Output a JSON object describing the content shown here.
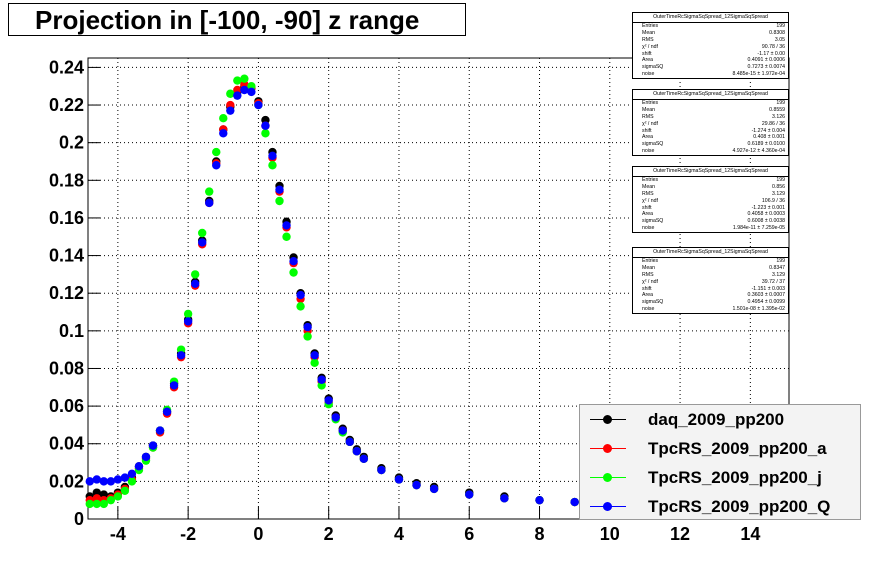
{
  "title": "Projection in [-100, -90] z range",
  "chart_data": {
    "type": "scatter",
    "xlim": [
      -4.85,
      15.1
    ],
    "ylim": [
      0,
      0.245
    ],
    "x_ticks": [
      -4,
      -2,
      0,
      2,
      4,
      6,
      8,
      10,
      12,
      14
    ],
    "x_tick_labels": [
      "-4",
      "-2",
      "0",
      "2",
      "4",
      "6",
      "8",
      "10",
      "12",
      "14"
    ],
    "y_ticks": [
      0,
      0.02,
      0.04,
      0.06,
      0.08,
      0.1,
      0.12,
      0.14,
      0.16,
      0.18,
      0.2,
      0.22,
      0.24
    ],
    "y_tick_labels": [
      "0",
      "0.02",
      "0.04",
      "0.06",
      "0.08",
      "0.1",
      "0.12",
      "0.14",
      "0.16",
      "0.18",
      "0.2",
      "0.22",
      "0.24"
    ],
    "grid": true,
    "series": [
      {
        "name": "daq_2009_pp200",
        "color": "#000000",
        "x": [
          -4.8,
          -4.6,
          -4.4,
          -4.2,
          -4.0,
          -3.8,
          -3.6,
          -3.4,
          -3.2,
          -3.0,
          -2.8,
          -2.6,
          -2.4,
          -2.2,
          -2.0,
          -1.8,
          -1.6,
          -1.4,
          -1.2,
          -1.0,
          -0.8,
          -0.6,
          -0.4,
          -0.2,
          0.0,
          0.2,
          0.4,
          0.6,
          0.8,
          1.0,
          1.2,
          1.4,
          1.6,
          1.8,
          2.0,
          2.2,
          2.4,
          2.6,
          2.8,
          3.0,
          3.5,
          4.0,
          4.5,
          5.0,
          6.0,
          7.0,
          8.0,
          9.0
        ],
        "y": [
          0.012,
          0.014,
          0.013,
          0.012,
          0.014,
          0.017,
          0.022,
          0.028,
          0.033,
          0.039,
          0.047,
          0.057,
          0.072,
          0.088,
          0.106,
          0.126,
          0.148,
          0.169,
          0.19,
          0.207,
          0.219,
          0.227,
          0.23,
          0.229,
          0.222,
          0.212,
          0.195,
          0.177,
          0.158,
          0.139,
          0.12,
          0.103,
          0.088,
          0.075,
          0.064,
          0.055,
          0.048,
          0.042,
          0.037,
          0.033,
          0.027,
          0.022,
          0.019,
          0.017,
          0.014,
          0.012,
          0.01,
          0.009
        ]
      },
      {
        "name": "TpcRS_2009_pp200_a",
        "color": "#ff0000",
        "x": [
          -4.8,
          -4.6,
          -4.4,
          -4.2,
          -4.0,
          -3.8,
          -3.6,
          -3.4,
          -3.2,
          -3.0,
          -2.8,
          -2.6,
          -2.4,
          -2.2,
          -2.0,
          -1.8,
          -1.6,
          -1.4,
          -1.2,
          -1.0,
          -0.8,
          -0.6,
          -0.4,
          -0.2,
          0.0,
          0.2,
          0.4,
          0.6,
          0.8,
          1.0,
          1.2,
          1.4,
          1.6,
          1.8,
          2.0,
          2.2,
          2.4,
          2.6,
          2.8,
          3.0,
          3.5,
          4.0,
          4.5,
          5.0,
          6.0,
          7.0,
          8.0,
          9.0
        ],
        "y": [
          0.01,
          0.011,
          0.01,
          0.011,
          0.013,
          0.016,
          0.021,
          0.027,
          0.032,
          0.038,
          0.046,
          0.056,
          0.07,
          0.086,
          0.104,
          0.124,
          0.146,
          0.168,
          0.189,
          0.207,
          0.22,
          0.228,
          0.231,
          0.229,
          0.221,
          0.209,
          0.192,
          0.174,
          0.155,
          0.136,
          0.117,
          0.1,
          0.086,
          0.073,
          0.062,
          0.054,
          0.047,
          0.041,
          0.036,
          0.032,
          0.026,
          0.021,
          0.018,
          0.016,
          0.013,
          0.011,
          0.01,
          0.009
        ]
      },
      {
        "name": "TpcRS_2009_pp200_j",
        "color": "#00ff00",
        "x": [
          -4.8,
          -4.6,
          -4.4,
          -4.2,
          -4.0,
          -3.8,
          -3.6,
          -3.4,
          -3.2,
          -3.0,
          -2.8,
          -2.6,
          -2.4,
          -2.2,
          -2.0,
          -1.8,
          -1.6,
          -1.4,
          -1.2,
          -1.0,
          -0.8,
          -0.6,
          -0.4,
          -0.2,
          0.0,
          0.2,
          0.4,
          0.6,
          0.8,
          1.0,
          1.2,
          1.4,
          1.6,
          1.8,
          2.0,
          2.2,
          2.4,
          2.6,
          2.8,
          3.0,
          3.5,
          4.0,
          4.5,
          5.0,
          6.0,
          7.0,
          8.0,
          9.0
        ],
        "y": [
          0.008,
          0.008,
          0.008,
          0.01,
          0.012,
          0.015,
          0.02,
          0.026,
          0.031,
          0.038,
          0.047,
          0.058,
          0.073,
          0.09,
          0.109,
          0.13,
          0.152,
          0.174,
          0.195,
          0.213,
          0.226,
          0.233,
          0.234,
          0.23,
          0.22,
          0.205,
          0.188,
          0.169,
          0.15,
          0.131,
          0.113,
          0.097,
          0.083,
          0.071,
          0.061,
          0.053,
          0.046,
          0.041,
          0.036,
          0.032,
          0.026,
          0.021,
          0.018,
          0.016,
          0.013,
          0.011,
          0.01,
          0.009
        ]
      },
      {
        "name": "TpcRS_2009_pp200_Q",
        "color": "#0000ff",
        "x": [
          -4.8,
          -4.6,
          -4.4,
          -4.2,
          -4.0,
          -3.8,
          -3.6,
          -3.4,
          -3.2,
          -3.0,
          -2.8,
          -2.6,
          -2.4,
          -2.2,
          -2.0,
          -1.8,
          -1.6,
          -1.4,
          -1.2,
          -1.0,
          -0.8,
          -0.6,
          -0.4,
          -0.2,
          0.0,
          0.2,
          0.4,
          0.6,
          0.8,
          1.0,
          1.2,
          1.4,
          1.6,
          1.8,
          2.0,
          2.2,
          2.4,
          2.6,
          2.8,
          3.0,
          3.5,
          4.0,
          4.5,
          5.0,
          6.0,
          7.0,
          8.0,
          9.0
        ],
        "y": [
          0.02,
          0.021,
          0.02,
          0.02,
          0.021,
          0.022,
          0.024,
          0.028,
          0.033,
          0.039,
          0.047,
          0.057,
          0.071,
          0.087,
          0.105,
          0.125,
          0.147,
          0.168,
          0.188,
          0.205,
          0.217,
          0.225,
          0.228,
          0.227,
          0.22,
          0.209,
          0.193,
          0.175,
          0.156,
          0.137,
          0.119,
          0.102,
          0.087,
          0.074,
          0.063,
          0.054,
          0.047,
          0.041,
          0.036,
          0.032,
          0.026,
          0.021,
          0.018,
          0.016,
          0.013,
          0.011,
          0.01,
          0.009
        ]
      }
    ]
  },
  "stat_boxes": [
    {
      "title": "OuterTimeRcSigmaSqSpread_12SigmaSqSpread",
      "rows": [
        [
          "Entries",
          "199"
        ],
        [
          "Mean",
          "0.8308"
        ],
        [
          "RMS",
          "3.05"
        ],
        [
          "χ² / ndf",
          "90.78 / 36"
        ],
        [
          "shift",
          "-1.17 ± 0.00"
        ],
        [
          "Area",
          "0.4091 ± 0.0006"
        ],
        [
          "sigmaSQ",
          "0.7273 ± 0.0074"
        ],
        [
          "noise",
          "8.485e-15 ± 1.972e-04"
        ]
      ]
    },
    {
      "title": "OuterTimeRcSigmaSqSpread_12SigmaSqSpread",
      "rows": [
        [
          "Entries",
          "199"
        ],
        [
          "Mean",
          "0.8559"
        ],
        [
          "RMS",
          "3.126"
        ],
        [
          "χ² / ndf",
          "29.86 / 36"
        ],
        [
          "shift",
          "-1.274 ± 0.004"
        ],
        [
          "Area",
          "0.408 ± 0.001"
        ],
        [
          "sigmaSQ",
          "0.6189 ± 0.0100"
        ],
        [
          "noise",
          "4.927e-12 ± 4.360e-04"
        ]
      ]
    },
    {
      "title": "OuterTimeRcSigmaSqSpread_12SigmaSqSpread",
      "rows": [
        [
          "Entries",
          "199"
        ],
        [
          "Mean",
          "0.856"
        ],
        [
          "RMS",
          "3.129"
        ],
        [
          "χ² / ndf",
          "106.9 / 36"
        ],
        [
          "shift",
          "-1.223 ± 0.001"
        ],
        [
          "Area",
          "0.4058 ± 0.0003"
        ],
        [
          "sigmaSQ",
          "0.6008 ± 0.0038"
        ],
        [
          "noise",
          "1.984e-11 ± 7.259e-05"
        ]
      ]
    },
    {
      "title": "OuterTimeRcSigmaSqSpread_12SigmaSqSpread",
      "rows": [
        [
          "Entries",
          "199"
        ],
        [
          "Mean",
          "0.8347"
        ],
        [
          "RMS",
          "3.129"
        ],
        [
          "χ² / ndf",
          "39.72 / 37"
        ],
        [
          "shift",
          "-1.151 ± 0.003"
        ],
        [
          "Area",
          "0.3603 ± 0.0007"
        ],
        [
          "sigmaSQ",
          "0.4954 ± 0.0099"
        ],
        [
          "noise",
          "1.501e-08 ± 1.395e-02"
        ]
      ]
    }
  ]
}
